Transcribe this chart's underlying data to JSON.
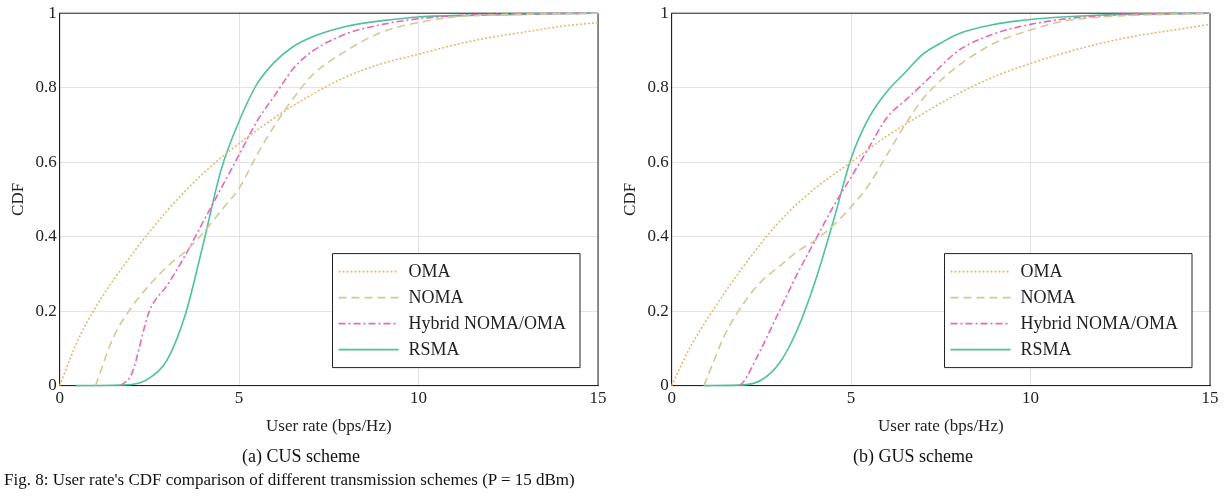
{
  "chart_data": [
    {
      "type": "line",
      "title": "(a) CUS scheme",
      "xlabel": "User rate (bps/Hz)",
      "ylabel": "CDF",
      "xlim": [
        0,
        15
      ],
      "ylim": [
        0,
        1
      ],
      "xticks": [
        0,
        5,
        10,
        15
      ],
      "yticks": [
        0,
        0.2,
        0.4,
        0.6,
        0.8,
        1
      ],
      "grid": true,
      "legend": "bottom right",
      "marker": "none",
      "annotations": [
        "Fig. 8: User rate's CDF comparison of different transmission schemes (P = 15 dBm)"
      ],
      "series": [
        {
          "name": "OMA",
          "color": "#e8b872",
          "line_style": "dotted",
          "x": [
            0,
            0.5,
            1,
            2,
            3,
            4,
            5,
            6,
            7,
            8,
            9,
            10,
            11,
            12,
            13,
            14,
            15
          ],
          "values": [
            0,
            0.12,
            0.21,
            0.35,
            0.47,
            0.57,
            0.65,
            0.72,
            0.78,
            0.83,
            0.865,
            0.89,
            0.915,
            0.935,
            0.95,
            0.965,
            0.975
          ]
        },
        {
          "name": "NOMA",
          "color": "#d4c89a",
          "line_style": "dashed",
          "x": [
            1,
            1.5,
            2,
            2.5,
            3,
            3.5,
            4,
            4.5,
            5,
            5.5,
            6,
            6.5,
            7,
            8,
            9,
            10,
            11,
            12,
            15
          ],
          "values": [
            0,
            0.13,
            0.21,
            0.27,
            0.32,
            0.36,
            0.41,
            0.47,
            0.53,
            0.62,
            0.7,
            0.77,
            0.83,
            0.9,
            0.95,
            0.975,
            0.99,
            0.995,
            1
          ]
        },
        {
          "name": "Hybrid NOMA/OMA",
          "color": "#e868b8",
          "line_style": "dashdot",
          "x": [
            1.7,
            2,
            2.5,
            3,
            3.5,
            4,
            4.5,
            5,
            5.5,
            6,
            6.5,
            7,
            8,
            9,
            10,
            12,
            15
          ],
          "values": [
            0,
            0.03,
            0.2,
            0.27,
            0.35,
            0.44,
            0.53,
            0.62,
            0.71,
            0.78,
            0.85,
            0.895,
            0.945,
            0.97,
            0.985,
            0.997,
            1
          ]
        },
        {
          "name": "RSMA",
          "color": "#4fc19b",
          "line_style": "solid",
          "x": [
            0.45,
            2,
            2.5,
            3,
            3.5,
            4,
            4.5,
            5,
            5.5,
            6,
            6.5,
            7,
            8,
            9,
            10,
            12,
            15
          ],
          "values": [
            0,
            0.003,
            0.02,
            0.07,
            0.19,
            0.38,
            0.58,
            0.71,
            0.81,
            0.87,
            0.91,
            0.935,
            0.965,
            0.98,
            0.99,
            0.995,
            1
          ]
        }
      ]
    },
    {
      "type": "line",
      "title": "(b) GUS scheme",
      "xlabel": "User rate (bps/Hz)",
      "ylabel": "CDF",
      "xlim": [
        0,
        15
      ],
      "ylim": [
        0,
        1
      ],
      "xticks": [
        0,
        5,
        10,
        15
      ],
      "yticks": [
        0,
        0.2,
        0.4,
        0.6,
        0.8,
        1
      ],
      "grid": true,
      "legend": "bottom right",
      "marker": "none",
      "series": [
        {
          "name": "OMA",
          "color": "#e8b872",
          "line_style": "dotted",
          "x": [
            0,
            0.5,
            1,
            2,
            3,
            4,
            5,
            6,
            7,
            8,
            9,
            10,
            11,
            12,
            13,
            14,
            15
          ],
          "values": [
            0,
            0.1,
            0.18,
            0.32,
            0.44,
            0.53,
            0.6,
            0.67,
            0.73,
            0.785,
            0.83,
            0.865,
            0.895,
            0.92,
            0.94,
            0.955,
            0.97
          ]
        },
        {
          "name": "NOMA",
          "color": "#d4c89a",
          "line_style": "dashed",
          "x": [
            0.9,
            1.5,
            2,
            2.5,
            3,
            3.5,
            4,
            4.5,
            5,
            5.5,
            6,
            6.5,
            7,
            7.5,
            8,
            9,
            10,
            11,
            12,
            15
          ],
          "values": [
            0,
            0.14,
            0.22,
            0.28,
            0.32,
            0.36,
            0.39,
            0.43,
            0.48,
            0.54,
            0.62,
            0.7,
            0.77,
            0.82,
            0.86,
            0.92,
            0.955,
            0.98,
            0.99,
            1
          ]
        },
        {
          "name": "Hybrid NOMA/OMA",
          "color": "#e868b8",
          "line_style": "dashdot",
          "x": [
            1.9,
            2,
            2.5,
            3,
            3.5,
            4,
            4.5,
            5,
            5.5,
            6,
            6.5,
            7,
            8,
            9,
            10,
            11,
            12,
            15
          ],
          "values": [
            0,
            0.01,
            0.1,
            0.2,
            0.3,
            0.39,
            0.48,
            0.56,
            0.64,
            0.72,
            0.765,
            0.81,
            0.9,
            0.945,
            0.97,
            0.985,
            0.993,
            1
          ]
        },
        {
          "name": "RSMA",
          "color": "#4fc19b",
          "line_style": "solid",
          "x": [
            0.9,
            2,
            2.5,
            3,
            3.5,
            4,
            4.5,
            5,
            5.5,
            6,
            6.5,
            7,
            7.5,
            8,
            9,
            10,
            12,
            15
          ],
          "values": [
            0,
            0.002,
            0.015,
            0.06,
            0.15,
            0.28,
            0.44,
            0.61,
            0.72,
            0.79,
            0.84,
            0.89,
            0.92,
            0.945,
            0.97,
            0.983,
            0.995,
            1
          ]
        }
      ]
    }
  ]
}
